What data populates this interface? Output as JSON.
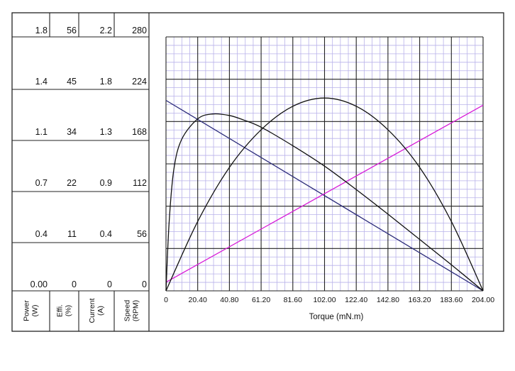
{
  "chart_data": {
    "type": "line",
    "xlabel": "Torque (mN.m)",
    "x_ticks": [
      "0",
      "20.40",
      "40.80",
      "61.20",
      "81.60",
      "102.00",
      "122.40",
      "142.80",
      "163.20",
      "183.60",
      "204.00"
    ],
    "xlim": [
      0,
      204
    ],
    "grid": true,
    "axes": [
      {
        "name": "Power",
        "unit": "(W)",
        "ticks": [
          "0.00",
          "0.4",
          "0.7",
          "1.1",
          "1.4",
          "1.8"
        ],
        "lim": [
          0,
          1.8
        ]
      },
      {
        "name": "Effi.",
        "unit": "(%)",
        "ticks": [
          "0",
          "11",
          "22",
          "34",
          "45",
          "56"
        ],
        "lim": [
          0,
          56
        ]
      },
      {
        "name": "Current",
        "unit": "(A)",
        "ticks": [
          "0",
          "0.4",
          "0.9",
          "1.3",
          "1.8",
          "2.2"
        ],
        "lim": [
          0,
          2.2
        ]
      },
      {
        "name": "Speed",
        "unit": "(RPM)",
        "ticks": [
          "0",
          "56",
          "112",
          "168",
          "224",
          "280"
        ],
        "lim": [
          0,
          280
        ]
      }
    ],
    "series": [
      {
        "axis": "Speed",
        "color": "#2b2b7a",
        "x": [
          0,
          204
        ],
        "y": [
          252,
          0
        ]
      },
      {
        "axis": "Current",
        "color": "#d81bd8",
        "x": [
          0,
          204
        ],
        "y": [
          0.09,
          1.93
        ]
      },
      {
        "axis": "Power",
        "color": "#111111",
        "x": [
          0,
          20.4,
          40.8,
          61.2,
          81.6,
          102,
          122.4,
          142.8,
          163.2,
          183.6,
          204
        ],
        "y": [
          0,
          0.59,
          1.05,
          1.37,
          1.57,
          1.64,
          1.57,
          1.37,
          1.05,
          0.59,
          0
        ]
      },
      {
        "axis": "Effi.",
        "color": "#111111",
        "x": [
          0,
          2,
          5,
          10,
          20.4,
          30,
          40.8,
          50,
          61.2,
          81.6,
          102,
          122.4,
          142.8,
          163.2,
          183.6,
          204
        ],
        "y": [
          0,
          18,
          32,
          40,
          45.5,
          46.8,
          46.4,
          45.2,
          43.3,
          38.4,
          33,
          26.8,
          20.3,
          13.6,
          6.9,
          0
        ]
      }
    ]
  }
}
